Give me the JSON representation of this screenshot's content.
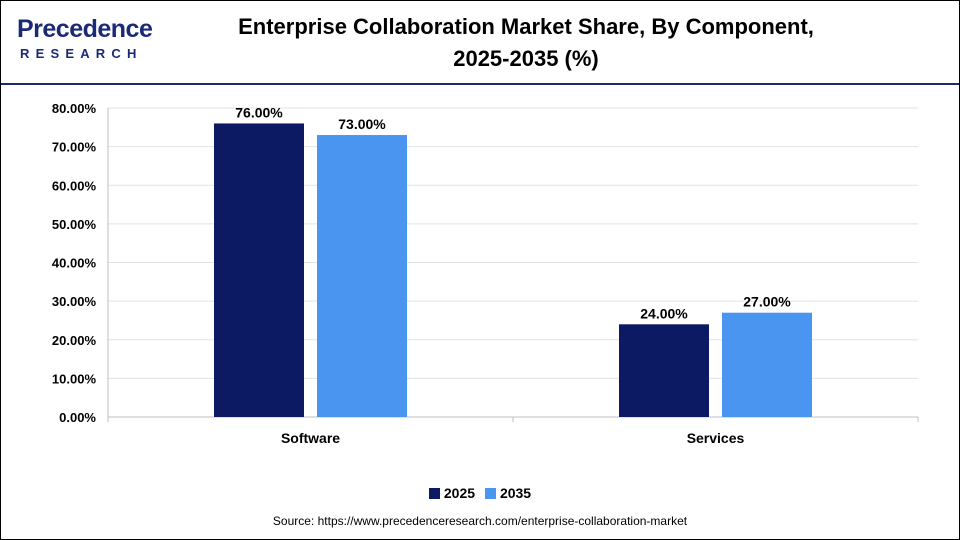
{
  "brand": {
    "name": "Precedence",
    "sub": "RESEARCH"
  },
  "chart_data": {
    "type": "bar",
    "title": "Enterprise Collaboration Market Share, By Component, 2025-2035 (%)",
    "title_lines": [
      "Enterprise Collaboration Market Share, By Component,",
      "2025-2035 (%)"
    ],
    "categories": [
      "Software",
      "Services"
    ],
    "series": [
      {
        "name": "2025",
        "values": [
          76.0,
          24.0
        ],
        "color": "#0c1a63"
      },
      {
        "name": "2035",
        "values": [
          73.0,
          27.0
        ],
        "color": "#4a95ef"
      }
    ],
    "data_labels": [
      [
        "76.00%",
        "24.00%"
      ],
      [
        "73.00%",
        "27.00%"
      ]
    ],
    "yticks": [
      "0.00%",
      "10.00%",
      "20.00%",
      "30.00%",
      "40.00%",
      "50.00%",
      "60.00%",
      "70.00%",
      "80.00%"
    ],
    "ylim": [
      0,
      80
    ],
    "grid": true,
    "legend_position": "bottom"
  },
  "source": "Source: https://www.precedenceresearch.com/enterprise-collaboration-market"
}
